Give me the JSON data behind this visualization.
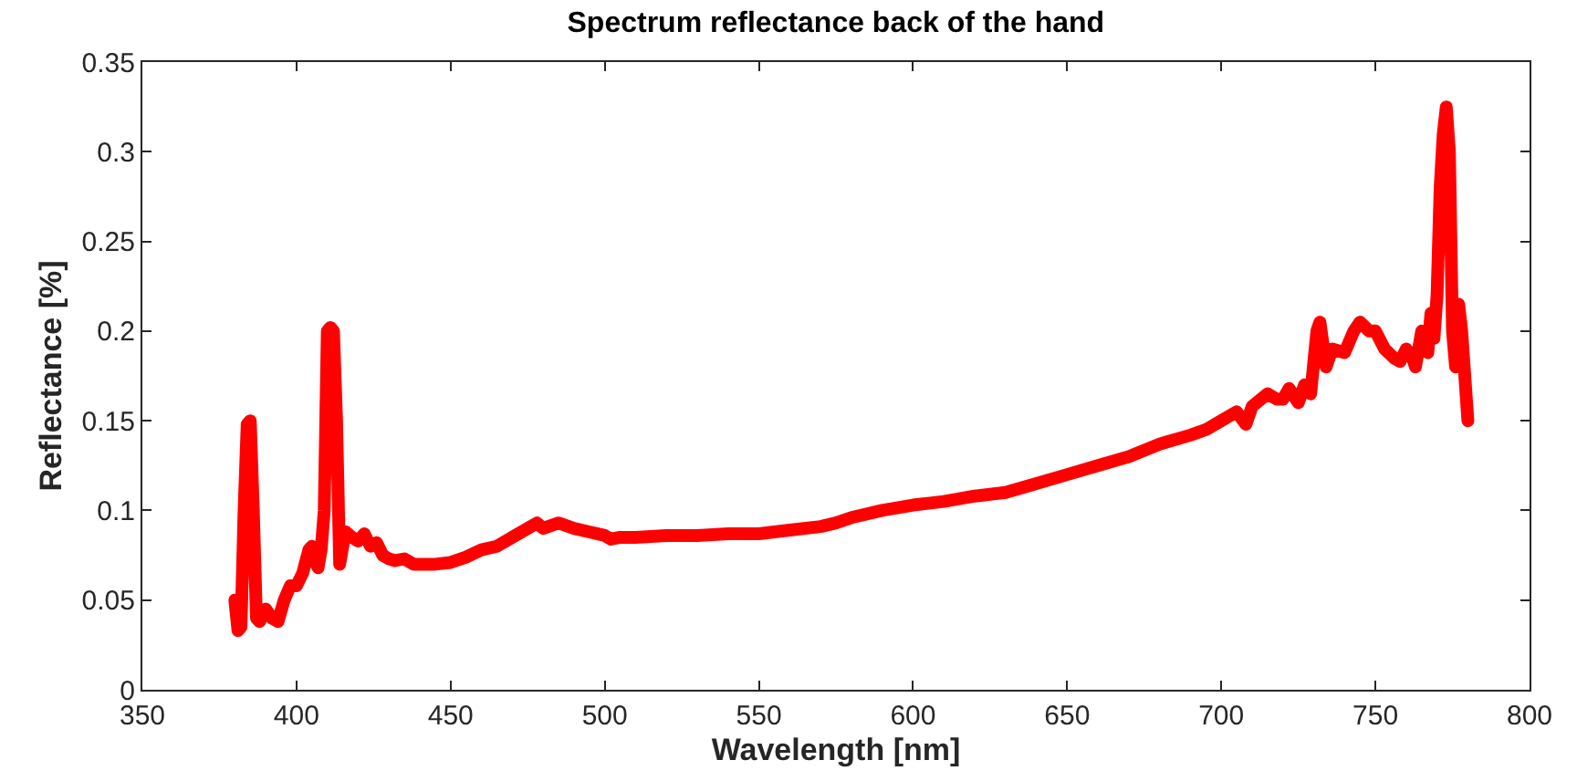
{
  "chart_data": {
    "type": "line",
    "title": "Spectrum reflectance back of the hand",
    "xlabel": "Wavelength [nm]",
    "ylabel": "Reflectance [%]",
    "x": [
      380,
      381,
      382,
      383,
      384,
      385,
      386,
      387,
      388,
      390,
      392,
      394,
      396,
      398,
      400,
      402,
      404,
      405,
      406,
      407,
      408,
      409,
      410,
      411,
      412,
      413,
      414,
      415,
      416,
      418,
      420,
      422,
      424,
      426,
      428,
      430,
      432,
      435,
      438,
      440,
      445,
      450,
      455,
      460,
      465,
      470,
      475,
      478,
      480,
      485,
      490,
      495,
      500,
      502,
      505,
      510,
      520,
      530,
      540,
      550,
      560,
      570,
      575,
      580,
      590,
      600,
      610,
      620,
      630,
      640,
      650,
      660,
      670,
      680,
      690,
      695,
      700,
      705,
      708,
      710,
      715,
      718,
      720,
      722,
      725,
      727,
      729,
      731,
      732,
      734,
      736,
      740,
      743,
      745,
      748,
      750,
      753,
      756,
      758,
      760,
      762,
      763,
      765,
      767,
      768,
      769,
      770,
      771,
      772,
      773,
      774,
      775,
      776,
      777,
      778,
      780
    ],
    "series": [
      {
        "color": "#ff0000",
        "values": [
          0.05,
          0.033,
          0.035,
          0.1,
          0.148,
          0.15,
          0.1,
          0.04,
          0.038,
          0.045,
          0.04,
          0.038,
          0.05,
          0.058,
          0.058,
          0.065,
          0.078,
          0.08,
          0.072,
          0.068,
          0.078,
          0.1,
          0.2,
          0.202,
          0.2,
          0.15,
          0.07,
          0.08,
          0.088,
          0.085,
          0.083,
          0.087,
          0.08,
          0.082,
          0.075,
          0.073,
          0.072,
          0.073,
          0.07,
          0.07,
          0.07,
          0.071,
          0.074,
          0.078,
          0.08,
          0.085,
          0.09,
          0.093,
          0.09,
          0.093,
          0.09,
          0.088,
          0.086,
          0.084,
          0.085,
          0.085,
          0.086,
          0.086,
          0.087,
          0.087,
          0.089,
          0.091,
          0.093,
          0.096,
          0.1,
          0.103,
          0.105,
          0.108,
          0.11,
          0.115,
          0.12,
          0.125,
          0.13,
          0.137,
          0.142,
          0.145,
          0.15,
          0.155,
          0.148,
          0.158,
          0.165,
          0.162,
          0.162,
          0.168,
          0.16,
          0.17,
          0.165,
          0.2,
          0.205,
          0.18,
          0.19,
          0.188,
          0.2,
          0.205,
          0.2,
          0.2,
          0.19,
          0.185,
          0.183,
          0.19,
          0.185,
          0.18,
          0.2,
          0.188,
          0.21,
          0.196,
          0.22,
          0.28,
          0.31,
          0.325,
          0.3,
          0.2,
          0.18,
          0.215,
          0.2,
          0.15
        ]
      }
    ],
    "xlim": [
      350,
      800
    ],
    "xticks": [
      350,
      400,
      450,
      500,
      550,
      600,
      650,
      700,
      750,
      800
    ],
    "ylim": [
      0,
      0.35
    ],
    "yticks": [
      0,
      0.05,
      0.1,
      0.15,
      0.2,
      0.25,
      0.3,
      0.35
    ],
    "grid": false,
    "marker": "none",
    "line_style": "solid"
  }
}
